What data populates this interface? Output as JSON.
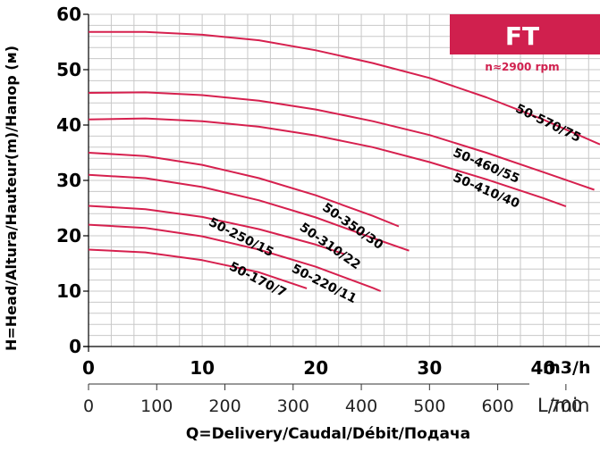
{
  "chart_data": {
    "type": "line",
    "badge": "FT",
    "speed_label": "n≈2900 rpm",
    "ylabel": "H=Head/Altura/Hauteur(m)/Напор (м)",
    "xlabel": "Q=Delivery/Caudal/Débit/Подача",
    "x_unit": "m3/h",
    "x2_unit": "L/min",
    "xlim": [
      0,
      45
    ],
    "ylim": [
      0,
      60
    ],
    "x_ticks": [
      "0",
      "10",
      "20",
      "30",
      "40"
    ],
    "y_ticks": [
      "0",
      "10",
      "20",
      "30",
      "40",
      "50",
      "60"
    ],
    "x2_ticks": [
      "0",
      "100",
      "200",
      "300",
      "400",
      "500",
      "600",
      "700"
    ],
    "grid": true,
    "curve_color": "#d6204e",
    "badge_color": "#d0204e",
    "series": [
      {
        "name": "50-570/75",
        "points": [
          [
            0,
            56.8
          ],
          [
            5,
            56.8
          ],
          [
            10,
            56.3
          ],
          [
            15,
            55.3
          ],
          [
            20,
            53.5
          ],
          [
            25,
            51.2
          ],
          [
            30,
            48.5
          ],
          [
            35,
            45.0
          ],
          [
            40,
            41.0
          ],
          [
            45,
            36.5
          ]
        ]
      },
      {
        "name": "50-460/55",
        "points": [
          [
            0,
            45.8
          ],
          [
            5,
            45.9
          ],
          [
            10,
            45.4
          ],
          [
            15,
            44.4
          ],
          [
            20,
            42.8
          ],
          [
            25,
            40.7
          ],
          [
            30,
            38.2
          ],
          [
            35,
            35.0
          ],
          [
            40,
            31.5
          ],
          [
            44.5,
            28.3
          ]
        ]
      },
      {
        "name": "50-410/40",
        "points": [
          [
            0,
            41.0
          ],
          [
            5,
            41.2
          ],
          [
            10,
            40.7
          ],
          [
            15,
            39.7
          ],
          [
            20,
            38.1
          ],
          [
            25,
            36.0
          ],
          [
            30,
            33.3
          ],
          [
            35,
            30.2
          ],
          [
            40,
            26.8
          ],
          [
            42,
            25.3
          ]
        ]
      },
      {
        "name": "50-350/30",
        "points": [
          [
            0,
            35.0
          ],
          [
            5,
            34.4
          ],
          [
            10,
            32.8
          ],
          [
            15,
            30.4
          ],
          [
            20,
            27.3
          ],
          [
            25,
            23.6
          ],
          [
            27.3,
            21.7
          ]
        ]
      },
      {
        "name": "50-310/22",
        "points": [
          [
            0,
            31.0
          ],
          [
            5,
            30.4
          ],
          [
            10,
            28.8
          ],
          [
            15,
            26.4
          ],
          [
            20,
            23.3
          ],
          [
            25,
            19.6
          ],
          [
            28.2,
            17.3
          ]
        ]
      },
      {
        "name": "50-250/15",
        "points": [
          [
            0,
            25.4
          ],
          [
            5,
            24.8
          ],
          [
            10,
            23.4
          ],
          [
            15,
            21.2
          ],
          [
            20,
            18.4
          ],
          [
            22.5,
            16.7
          ]
        ]
      },
      {
        "name": "50-220/11",
        "points": [
          [
            0,
            22.0
          ],
          [
            5,
            21.4
          ],
          [
            10,
            19.9
          ],
          [
            15,
            17.5
          ],
          [
            20,
            14.4
          ],
          [
            25,
            10.6
          ],
          [
            25.7,
            10.0
          ]
        ]
      },
      {
        "name": "50-170/7",
        "points": [
          [
            0,
            17.5
          ],
          [
            5,
            17.0
          ],
          [
            10,
            15.6
          ],
          [
            15,
            13.4
          ],
          [
            19.2,
            10.5
          ]
        ]
      }
    ]
  }
}
